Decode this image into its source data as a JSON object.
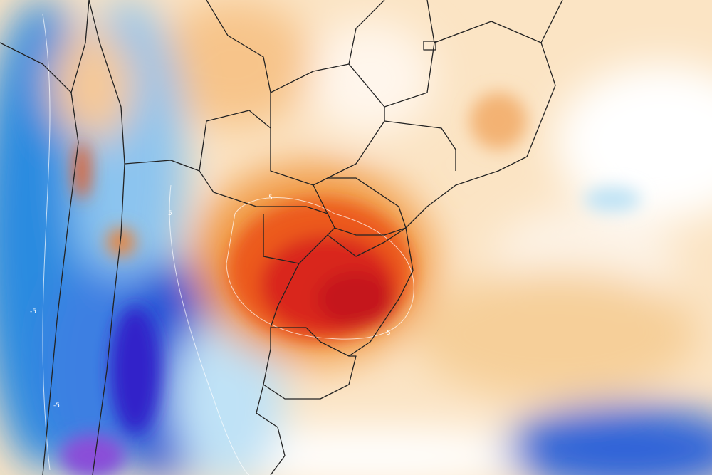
{
  "map": {
    "contour_labels": [
      "5",
      "5",
      "5",
      "-5",
      "-5"
    ]
  }
}
